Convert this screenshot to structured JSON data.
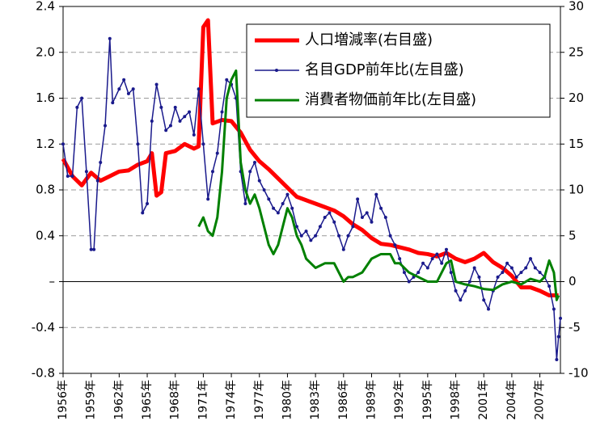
{
  "chart_data": {
    "type": "line",
    "xlim": [
      1956,
      2009.2
    ],
    "xticks": [
      {
        "value": 1956,
        "label": "1956年"
      },
      {
        "value": 1959,
        "label": "1959年"
      },
      {
        "value": 1962,
        "label": "1962年"
      },
      {
        "value": 1965,
        "label": "1965年"
      },
      {
        "value": 1968,
        "label": "1968年"
      },
      {
        "value": 1971,
        "label": "1971年"
      },
      {
        "value": 1974,
        "label": "1974年"
      },
      {
        "value": 1977,
        "label": "1977年"
      },
      {
        "value": 1980,
        "label": "1980年"
      },
      {
        "value": 1983,
        "label": "1983年"
      },
      {
        "value": 1986,
        "label": "1986年"
      },
      {
        "value": 1989,
        "label": "1989年"
      },
      {
        "value": 1992,
        "label": "1992年"
      },
      {
        "value": 1995,
        "label": "1995年"
      },
      {
        "value": 1998,
        "label": "1998年"
      },
      {
        "value": 2001,
        "label": "2001年"
      },
      {
        "value": 2004,
        "label": "2004年"
      },
      {
        "value": 2007,
        "label": "2007年"
      }
    ],
    "ylim": [
      -0.8,
      2.4
    ],
    "yticks": [
      {
        "value": -0.8,
        "label": "-0.8"
      },
      {
        "value": -0.4,
        "label": "-0.4"
      },
      {
        "value": 0,
        "label": "–"
      },
      0.4,
      0.8,
      1.2,
      1.6,
      {
        "value": 2.0,
        "label": "2.0"
      },
      2.4
    ],
    "y2lim": [
      -10,
      30
    ],
    "y2ticks": [
      -10,
      -5,
      0,
      5,
      10,
      15,
      20,
      25,
      30
    ],
    "grid": true,
    "legend": "top-right",
    "series": [
      {
        "name": "人口増減率(右目盛)",
        "color": "#ff0000",
        "width": 5,
        "markers": false,
        "x": [
          1956,
          1957,
          1958,
          1959,
          1960,
          1961,
          1962,
          1963,
          1964,
          1965,
          1965.5,
          1966,
          1966.5,
          1967,
          1968,
          1969,
          1970,
          1970.5,
          1971,
          1971.5,
          1972,
          1973,
          1974,
          1975,
          1976,
          1977,
          1978,
          1979,
          1980,
          1981,
          1982,
          1983,
          1984,
          1985,
          1986,
          1987,
          1988,
          1989,
          1990,
          1991,
          1992,
          1993,
          1994,
          1995,
          1996,
          1997,
          1998,
          1999,
          2000,
          2001,
          2002,
          2003,
          2004,
          2005,
          2006,
          2007,
          2008,
          2009
        ],
        "values": [
          1.07,
          0.92,
          0.84,
          0.95,
          0.88,
          0.92,
          0.96,
          0.97,
          1.02,
          1.05,
          1.12,
          0.75,
          0.78,
          1.12,
          1.14,
          1.2,
          1.16,
          1.18,
          2.22,
          2.28,
          1.38,
          1.41,
          1.4,
          1.3,
          1.15,
          1.05,
          0.98,
          0.9,
          0.82,
          0.74,
          0.71,
          0.68,
          0.65,
          0.62,
          0.57,
          0.5,
          0.45,
          0.38,
          0.33,
          0.32,
          0.3,
          0.28,
          0.25,
          0.24,
          0.22,
          0.25,
          0.2,
          0.17,
          0.2,
          0.25,
          0.17,
          0.12,
          0.05,
          -0.05,
          -0.05,
          -0.08,
          -0.12,
          -0.12
        ]
      },
      {
        "name": "名目GDP前年比(左目盛)",
        "color": "#1a1a8c",
        "width": 1.5,
        "markers": true,
        "axis": "y2",
        "x": [
          1956,
          1956.5,
          1957,
          1957.5,
          1958,
          1958.5,
          1959,
          1959.3,
          1959.7,
          1960,
          1960.5,
          1961,
          1961.3,
          1962,
          1962.5,
          1963,
          1963.5,
          1964,
          1964.5,
          1965,
          1965.5,
          1966,
          1966.5,
          1967,
          1967.5,
          1968,
          1968.5,
          1969,
          1969.5,
          1970,
          1970.5,
          1971,
          1971.5,
          1972,
          1972.5,
          1973,
          1973.5,
          1974,
          1974.5,
          1975,
          1975.5,
          1976,
          1976.5,
          1977,
          1977.5,
          1978,
          1978.5,
          1979,
          1979.5,
          1980,
          1980.5,
          1981,
          1981.5,
          1982,
          1982.5,
          1983,
          1983.5,
          1984,
          1984.5,
          1985,
          1985.5,
          1986,
          1986.5,
          1987,
          1987.5,
          1988,
          1988.5,
          1989,
          1989.5,
          1990,
          1990.5,
          1991,
          1991.5,
          1992,
          1992.5,
          1993,
          1993.5,
          1994,
          1994.5,
          1995,
          1995.5,
          1996,
          1996.5,
          1997,
          1997.5,
          1998,
          1998.5,
          1999,
          1999.5,
          2000,
          2000.5,
          2001,
          2001.5,
          2002,
          2002.5,
          2003,
          2003.5,
          2004,
          2004.5,
          2005,
          2005.5,
          2006,
          2006.5,
          2007,
          2007.5,
          2008,
          2008.5,
          2008.8,
          2009,
          2009.2
        ],
        "values": [
          15,
          11.5,
          11.5,
          19,
          20,
          12,
          3.5,
          3.5,
          11,
          13,
          17,
          26.5,
          19.5,
          21,
          22,
          20.5,
          21,
          15,
          7.5,
          8.5,
          17.5,
          21.5,
          19,
          16.5,
          17,
          19,
          17.5,
          18,
          18.5,
          16,
          21,
          15,
          9,
          12,
          14,
          18.5,
          22,
          21.5,
          20,
          12,
          8.5,
          12,
          13,
          11,
          10,
          9,
          8,
          7.5,
          8.5,
          9.5,
          8,
          6,
          5,
          5.5,
          4.5,
          5,
          6,
          7,
          7.5,
          6.5,
          5,
          3.5,
          5,
          6,
          9,
          7,
          7.5,
          6.5,
          9.5,
          8,
          7,
          5,
          4,
          2.5,
          1,
          0,
          0.5,
          1,
          2,
          1.5,
          2.5,
          3,
          2,
          3.5,
          1,
          -1,
          -2,
          -1,
          0,
          1.5,
          0.5,
          -2,
          -3,
          -1,
          0.5,
          1,
          2,
          1.5,
          0.5,
          1,
          1.5,
          2.5,
          1.5,
          1,
          0.5,
          -0.5,
          -3,
          -8.5,
          -6,
          -4
        ]
      },
      {
        "name": "消費者物価前年比(左目盛)",
        "color": "#008000",
        "width": 3,
        "markers": false,
        "axis": "y2",
        "x": [
          1970.5,
          1971,
          1971.5,
          1972,
          1972.5,
          1973,
          1973.5,
          1974,
          1974.5,
          1975,
          1975.5,
          1976,
          1976.5,
          1977,
          1977.5,
          1978,
          1978.5,
          1979,
          1979.5,
          1980,
          1980.5,
          1981,
          1981.5,
          1982,
          1983,
          1984,
          1985,
          1985.5,
          1986,
          1986.5,
          1987,
          1988,
          1989,
          1990,
          1991,
          1991.5,
          1992,
          1993,
          1994,
          1995,
          1996,
          1997,
          1997.5,
          1998,
          1999,
          2000,
          2001,
          2002,
          2003,
          2004,
          2005,
          2006,
          2007,
          2007.5,
          2008,
          2008.5,
          2008.8,
          2009
        ],
        "values": [
          6,
          7,
          5.5,
          5,
          7,
          12,
          20,
          22,
          23,
          13,
          10,
          8.5,
          9.5,
          8,
          6,
          4,
          3,
          4,
          6,
          8,
          7,
          5,
          4,
          2.5,
          1.5,
          2,
          2,
          1,
          0,
          0.5,
          0.5,
          1,
          2.5,
          3,
          3,
          2,
          2,
          1,
          0.5,
          0,
          0,
          2,
          2.3,
          0,
          -0.3,
          -0.5,
          -0.8,
          -0.9,
          -0.3,
          0,
          -0.3,
          0.3,
          0,
          0.5,
          2.3,
          1,
          -2,
          -1.5
        ]
      }
    ]
  }
}
